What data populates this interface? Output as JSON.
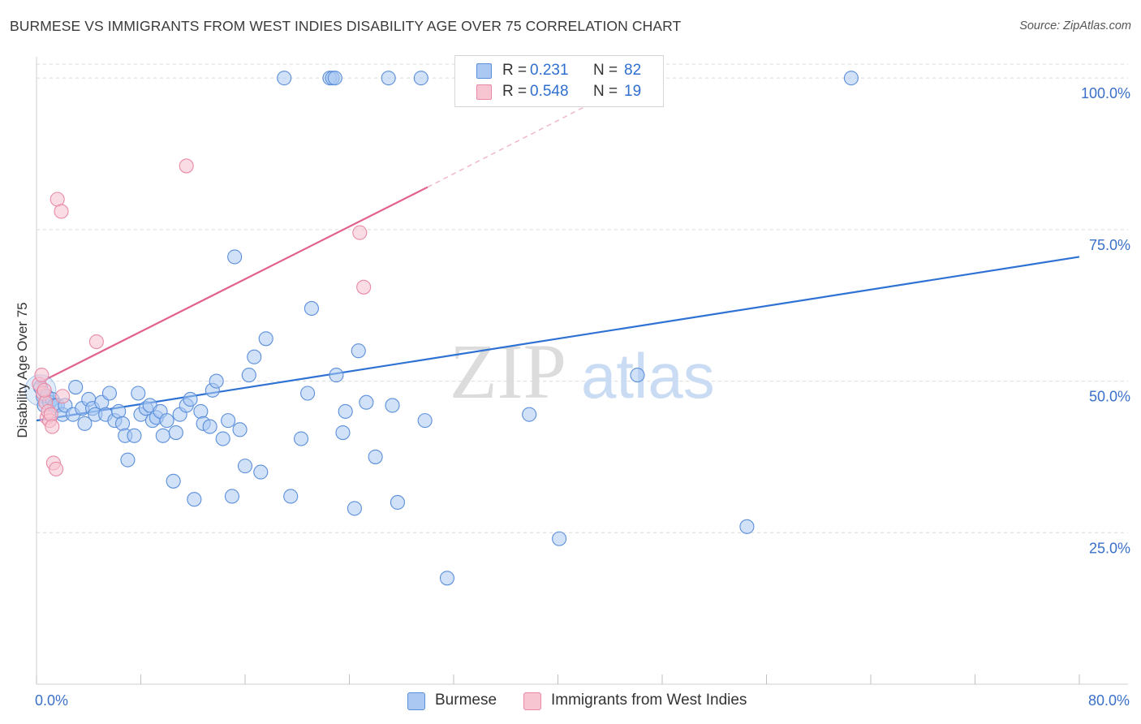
{
  "header": {
    "title": "BURMESE VS IMMIGRANTS FROM WEST INDIES DISABILITY AGE OVER 75 CORRELATION CHART",
    "source": "Source: ZipAtlas.com"
  },
  "legend": {
    "rows": [
      {
        "r_label": "R =",
        "r_value": "0.231",
        "n_label": "N =",
        "n_value": "82"
      },
      {
        "r_label": "R =",
        "r_value": "0.548",
        "n_label": "N =",
        "n_value": "19"
      }
    ]
  },
  "bottom_legend": [
    "Burmese",
    "Immigrants from West Indies"
  ],
  "watermark": {
    "zip": "ZIP",
    "atlas": "atlas"
  },
  "colors": {
    "blue_fill": "#aac8f2",
    "blue_stroke": "#5b8fdb",
    "blue_line": "#2f72d3",
    "pink_fill": "#f7c4d2",
    "pink_stroke": "#e88aa5",
    "pink_line": "#e2608a",
    "tick_text": "#3a70c9",
    "grid": "#d9d9d9"
  },
  "chart_data": {
    "type": "scatter",
    "title": "BURMESE VS IMMIGRANTS FROM WEST INDIES DISABILITY AGE OVER 75 CORRELATION CHART",
    "xlabel": "",
    "ylabel": "Disability Age Over 75",
    "xlim": [
      0,
      80
    ],
    "ylim": [
      0,
      103.5
    ],
    "x_tick_labels": [
      {
        "value": 0,
        "label": "0.0%"
      },
      {
        "value": 80,
        "label": "80.0%"
      }
    ],
    "x_minor_ticks": [
      0,
      8,
      16,
      24,
      32,
      40,
      48,
      56,
      64,
      72,
      80
    ],
    "y_ticks": [
      {
        "value": 25,
        "label": "25.0%"
      },
      {
        "value": 50,
        "label": "50.0%"
      },
      {
        "value": 75,
        "label": "75.0%"
      },
      {
        "value": 100,
        "label": "100.0%"
      }
    ],
    "grid": true,
    "legend_position": "top-center",
    "series": [
      {
        "name": "Burmese",
        "r": 0.231,
        "n": 82,
        "trend": {
          "x0": 0,
          "y0": 43.5,
          "x1": 80,
          "y1": 70.5
        },
        "points": [
          [
            0.3,
            49
          ],
          [
            0.5,
            47.5
          ],
          [
            0.6,
            46
          ],
          [
            0.8,
            47.5
          ],
          [
            1.0,
            46.5
          ],
          [
            1.2,
            47
          ],
          [
            1.4,
            46
          ],
          [
            1.6,
            46
          ],
          [
            2.0,
            44.5
          ],
          [
            2.2,
            46
          ],
          [
            2.8,
            44.5
          ],
          [
            3.0,
            49
          ],
          [
            3.5,
            45.5
          ],
          [
            3.7,
            43
          ],
          [
            4.0,
            47
          ],
          [
            4.3,
            45.5
          ],
          [
            4.5,
            44.5
          ],
          [
            5.0,
            46.5
          ],
          [
            5.3,
            44.5
          ],
          [
            5.6,
            48
          ],
          [
            6.0,
            43.5
          ],
          [
            6.3,
            45
          ],
          [
            6.6,
            43
          ],
          [
            6.8,
            41
          ],
          [
            7.0,
            37
          ],
          [
            7.5,
            41
          ],
          [
            7.8,
            48
          ],
          [
            8.0,
            44.5
          ],
          [
            8.4,
            45.5
          ],
          [
            8.7,
            46
          ],
          [
            8.9,
            43.5
          ],
          [
            9.2,
            44
          ],
          [
            9.5,
            45
          ],
          [
            9.7,
            41
          ],
          [
            10.0,
            43.5
          ],
          [
            10.5,
            33.5
          ],
          [
            10.7,
            41.5
          ],
          [
            11.0,
            44.5
          ],
          [
            11.5,
            46
          ],
          [
            11.8,
            47
          ],
          [
            12.1,
            30.5
          ],
          [
            12.6,
            45
          ],
          [
            12.8,
            43
          ],
          [
            13.3,
            42.5
          ],
          [
            13.5,
            48.5
          ],
          [
            13.8,
            50
          ],
          [
            14.3,
            40.5
          ],
          [
            14.7,
            43.5
          ],
          [
            15.0,
            31
          ],
          [
            15.2,
            70.5
          ],
          [
            15.6,
            42
          ],
          [
            16.0,
            36
          ],
          [
            16.3,
            51
          ],
          [
            16.7,
            54
          ],
          [
            17.2,
            35
          ],
          [
            17.6,
            57
          ],
          [
            19.0,
            100
          ],
          [
            19.5,
            31
          ],
          [
            20.3,
            40.5
          ],
          [
            20.8,
            48
          ],
          [
            21.1,
            62
          ],
          [
            22.5,
            100
          ],
          [
            22.7,
            100
          ],
          [
            22.9,
            100
          ],
          [
            23.0,
            51
          ],
          [
            23.5,
            41.5
          ],
          [
            23.7,
            45
          ],
          [
            24.4,
            29
          ],
          [
            24.7,
            55
          ],
          [
            25.3,
            46.5
          ],
          [
            26.0,
            37.5
          ],
          [
            27.0,
            100
          ],
          [
            27.3,
            46
          ],
          [
            27.7,
            30
          ],
          [
            29.5,
            100
          ],
          [
            29.8,
            43.5
          ],
          [
            31.5,
            17.5
          ],
          [
            37.8,
            44.5
          ],
          [
            40.1,
            24
          ],
          [
            46.1,
            51
          ],
          [
            54.5,
            26
          ],
          [
            62.5,
            100
          ]
        ]
      },
      {
        "name": "Immigrants from West Indies",
        "r": 0.548,
        "n": 19,
        "trend": {
          "x0": 0,
          "y0": 49.5,
          "x1": 30.0,
          "y1": 82.0
        },
        "trend_dashed_to": {
          "x": 45.0,
          "y": 98.5
        },
        "points": [
          [
            0.2,
            49.5
          ],
          [
            0.4,
            51
          ],
          [
            0.5,
            48
          ],
          [
            0.7,
            46.5
          ],
          [
            0.8,
            44
          ],
          [
            0.9,
            45
          ],
          [
            1.0,
            43.5
          ],
          [
            1.1,
            44.5
          ],
          [
            1.2,
            42.5
          ],
          [
            1.3,
            36.5
          ],
          [
            1.5,
            35.5
          ],
          [
            1.6,
            80
          ],
          [
            1.9,
            78
          ],
          [
            2.0,
            47.5
          ],
          [
            4.6,
            56.5
          ],
          [
            11.5,
            85.5
          ],
          [
            24.8,
            74.5
          ],
          [
            25.1,
            65.5
          ],
          [
            0.6,
            48.5
          ]
        ]
      }
    ]
  }
}
